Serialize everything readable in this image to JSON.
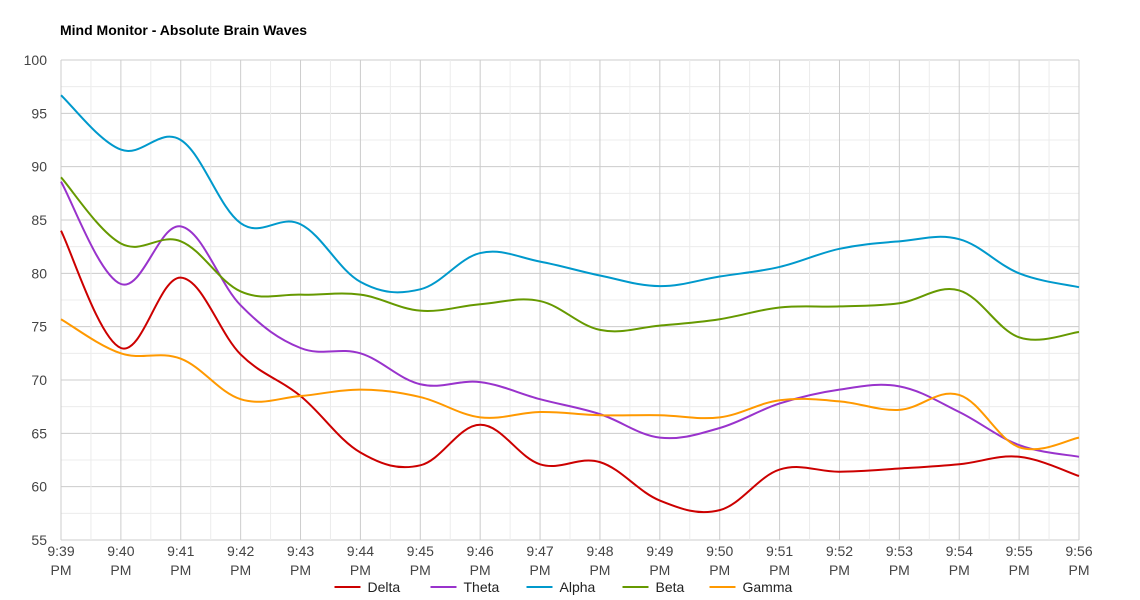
{
  "chart_data": {
    "type": "line",
    "title": "Mind Monitor -  Absolute Brain Waves",
    "xlabel": "",
    "ylabel": "",
    "ylim": [
      55,
      100
    ],
    "yticks": [
      "55",
      "60",
      "65",
      "70",
      "75",
      "80",
      "85",
      "90",
      "95",
      "100"
    ],
    "categories": [
      [
        "9:39",
        "PM"
      ],
      [
        "9:40",
        "PM"
      ],
      [
        "9:41",
        "PM"
      ],
      [
        "9:42",
        "PM"
      ],
      [
        "9:43",
        "PM"
      ],
      [
        "9:44",
        "PM"
      ],
      [
        "9:45",
        "PM"
      ],
      [
        "9:46",
        "PM"
      ],
      [
        "9:47",
        "PM"
      ],
      [
        "9:48",
        "PM"
      ],
      [
        "9:49",
        "PM"
      ],
      [
        "9:50",
        "PM"
      ],
      [
        "9:51",
        "PM"
      ],
      [
        "9:52",
        "PM"
      ],
      [
        "9:53",
        "PM"
      ],
      [
        "9:54",
        "PM"
      ],
      [
        "9:55",
        "PM"
      ],
      [
        "9:56",
        "PM"
      ]
    ],
    "grid": true,
    "legend": "bottom-center",
    "series": [
      {
        "name": "Delta",
        "color": "#cc0000",
        "values": [
          84.0,
          73.0,
          79.6,
          72.4,
          68.5,
          63.2,
          62.0,
          65.8,
          62.1,
          62.3,
          58.7,
          57.8,
          61.6,
          61.4,
          61.7,
          62.1,
          62.8,
          61.0
        ]
      },
      {
        "name": "Theta",
        "color": "#9933cc",
        "values": [
          88.6,
          79.0,
          84.4,
          77.0,
          73.0,
          72.5,
          69.6,
          69.8,
          68.2,
          66.8,
          64.6,
          65.5,
          67.8,
          69.1,
          69.4,
          67.0,
          63.9,
          62.8
        ]
      },
      {
        "name": "Alpha",
        "color": "#0099cc",
        "values": [
          96.7,
          91.6,
          92.5,
          84.7,
          84.6,
          79.2,
          78.5,
          81.9,
          81.1,
          79.8,
          78.8,
          79.7,
          80.6,
          82.3,
          83.0,
          83.2,
          80.0,
          78.7
        ]
      },
      {
        "name": "Beta",
        "color": "#669900",
        "values": [
          89.0,
          82.8,
          83.0,
          78.3,
          78.0,
          78.0,
          76.5,
          77.1,
          77.4,
          74.7,
          75.1,
          75.7,
          76.8,
          76.9,
          77.2,
          78.4,
          74.0,
          74.5
        ]
      },
      {
        "name": "Gamma",
        "color": "#ff9900",
        "values": [
          75.7,
          72.5,
          72.0,
          68.2,
          68.5,
          69.1,
          68.4,
          66.5,
          67.0,
          66.7,
          66.7,
          66.5,
          68.1,
          68.0,
          67.2,
          68.6,
          63.7,
          64.6
        ]
      }
    ]
  }
}
